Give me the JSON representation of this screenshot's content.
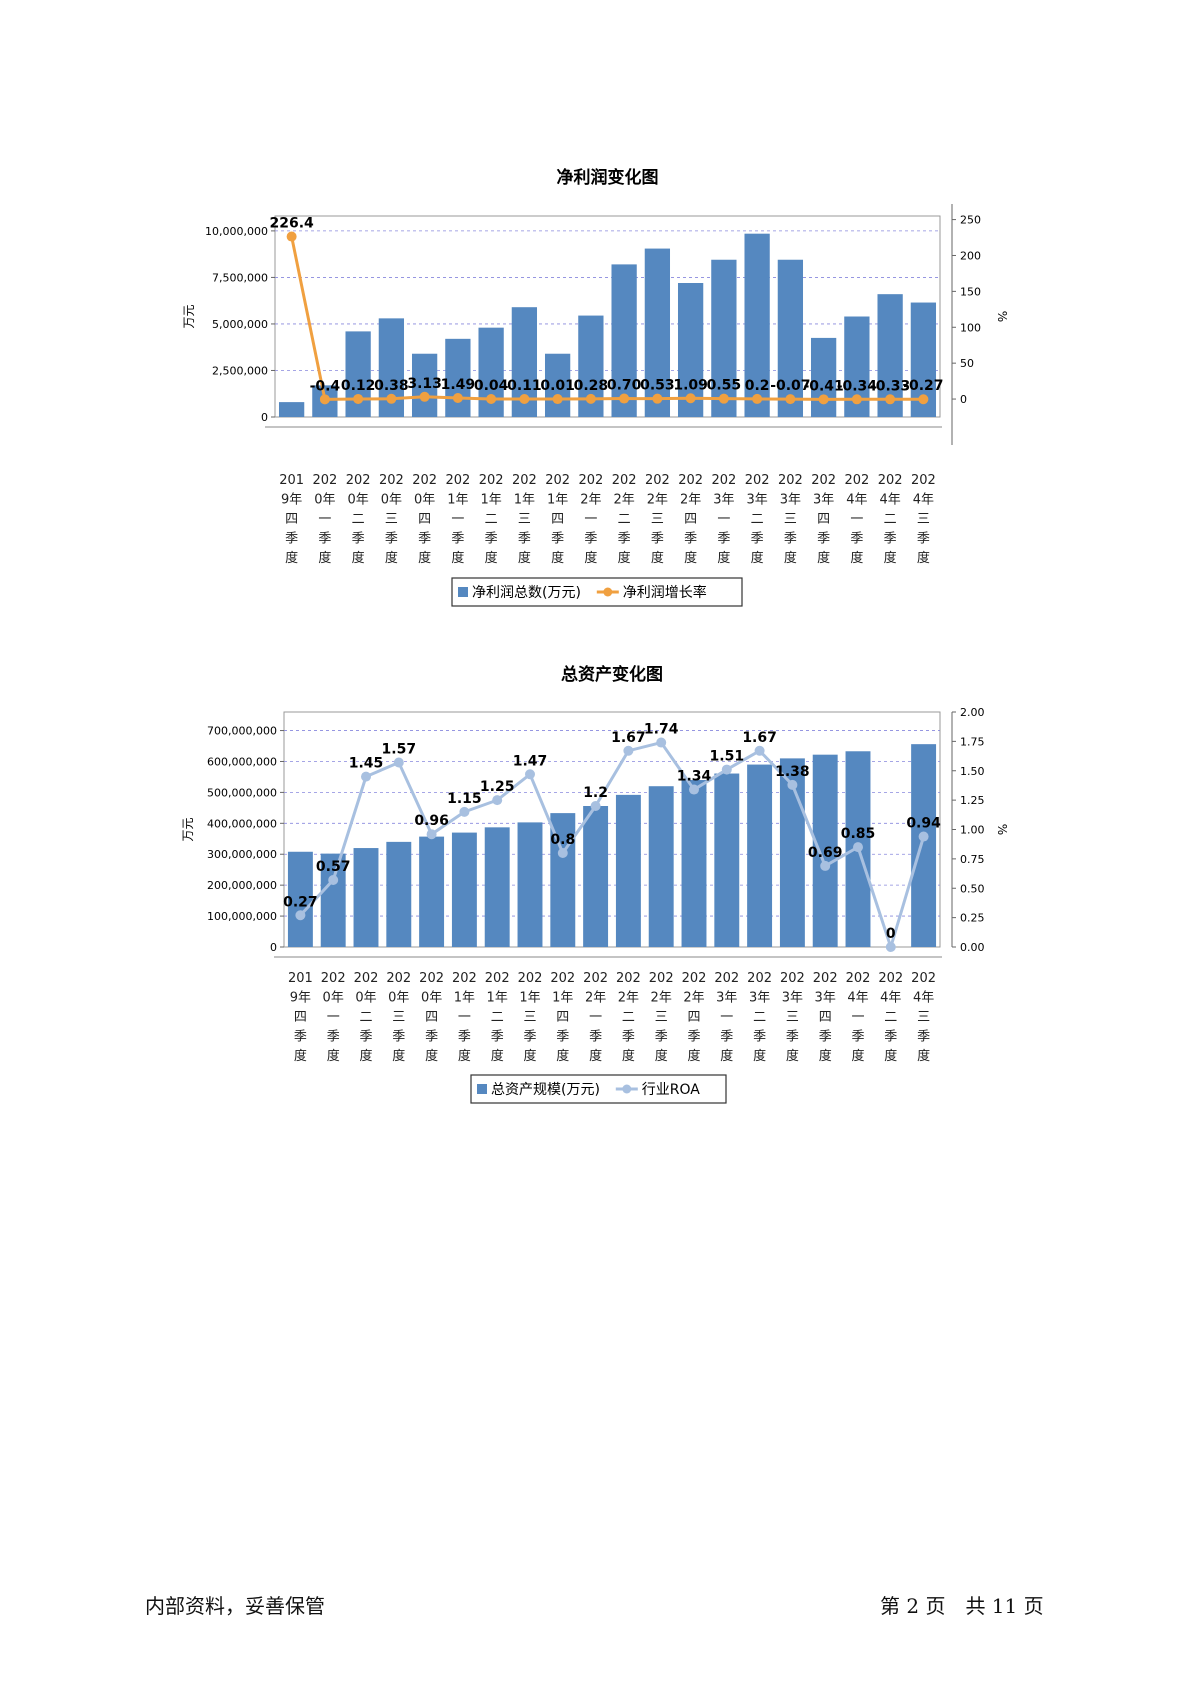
{
  "chart_data": [
    {
      "type": "bar",
      "title": "净利润变化图",
      "ylabel": "万元",
      "y2label": "%",
      "ylim": [
        0,
        10800000
      ],
      "y2lim": [
        -25,
        255
      ],
      "yticks": [
        "0",
        "2,500,000",
        "5,000,000",
        "7,500,000",
        "10,000,000"
      ],
      "y2ticks": [
        "0",
        "50",
        "100",
        "150",
        "200",
        "250"
      ],
      "grid": true,
      "legend_position": "bottom-center",
      "categories": [
        [
          "201",
          "9年",
          "四",
          "季",
          "度"
        ],
        [
          "202",
          "0年",
          "一",
          "季",
          "度"
        ],
        [
          "202",
          "0年",
          "二",
          "季",
          "度"
        ],
        [
          "202",
          "0年",
          "三",
          "季",
          "度"
        ],
        [
          "202",
          "0年",
          "四",
          "季",
          "度"
        ],
        [
          "202",
          "1年",
          "一",
          "季",
          "度"
        ],
        [
          "202",
          "1年",
          "二",
          "季",
          "度"
        ],
        [
          "202",
          "1年",
          "三",
          "季",
          "度"
        ],
        [
          "202",
          "1年",
          "四",
          "季",
          "度"
        ],
        [
          "202",
          "2年",
          "一",
          "季",
          "度"
        ],
        [
          "202",
          "2年",
          "二",
          "季",
          "度"
        ],
        [
          "202",
          "2年",
          "三",
          "季",
          "度"
        ],
        [
          "202",
          "2年",
          "四",
          "季",
          "度"
        ],
        [
          "202",
          "3年",
          "一",
          "季",
          "度"
        ],
        [
          "202",
          "3年",
          "二",
          "季",
          "度"
        ],
        [
          "202",
          "3年",
          "三",
          "季",
          "度"
        ],
        [
          "202",
          "3年",
          "四",
          "季",
          "度"
        ],
        [
          "202",
          "4年",
          "一",
          "季",
          "度"
        ],
        [
          "202",
          "4年",
          "二",
          "季",
          "度"
        ],
        [
          "202",
          "4年",
          "三",
          "季",
          "度"
        ]
      ],
      "series": [
        {
          "name": "净利润总数(万元)",
          "type": "bar",
          "axis": "left",
          "color": "#5588c0",
          "values": [
            800000,
            1700000,
            4600000,
            5300000,
            3400000,
            4200000,
            4800000,
            5900000,
            3400000,
            5450000,
            8200000,
            9050000,
            7200000,
            8450000,
            9850000,
            8450000,
            4250000,
            5400000,
            6600000,
            6150000
          ]
        },
        {
          "name": "净利润增长率",
          "type": "line",
          "axis": "right",
          "color": "#f0a040",
          "values": [
            226.4,
            -0.4,
            0.12,
            0.38,
            3.13,
            1.49,
            0.04,
            0.11,
            0.01,
            0.28,
            0.7,
            0.53,
            1.09,
            0.55,
            0.2,
            -0.07,
            -0.41,
            -0.34,
            -0.33,
            -0.27
          ],
          "labels": [
            "226.4",
            "-0.4",
            "0.12",
            "0.38",
            "3.13",
            "1.49",
            "0.04",
            "0.11",
            "0.01",
            "0.28",
            "0.70",
            "0.53",
            "1.09",
            "0.55",
            "0.2",
            "-0.07",
            "-0.41",
            "-0.34",
            "-0.33",
            "-0.27"
          ]
        }
      ]
    },
    {
      "type": "bar",
      "title": "总资产变化图",
      "ylabel": "万元",
      "y2label": "%",
      "ylim": [
        0,
        760000000
      ],
      "y2lim": [
        0,
        2.0
      ],
      "yticks": [
        "0",
        "100,000,000",
        "200,000,000",
        "300,000,000",
        "400,000,000",
        "500,000,000",
        "600,000,000",
        "700,000,000"
      ],
      "y2ticks": [
        "0.00",
        "0.25",
        "0.50",
        "0.75",
        "1.00",
        "1.25",
        "1.50",
        "1.75",
        "2.00"
      ],
      "grid": true,
      "legend_position": "bottom-center",
      "categories": [
        [
          "201",
          "9年",
          "四",
          "季",
          "度"
        ],
        [
          "202",
          "0年",
          "一",
          "季",
          "度"
        ],
        [
          "202",
          "0年",
          "二",
          "季",
          "度"
        ],
        [
          "202",
          "0年",
          "三",
          "季",
          "度"
        ],
        [
          "202",
          "0年",
          "四",
          "季",
          "度"
        ],
        [
          "202",
          "1年",
          "一",
          "季",
          "度"
        ],
        [
          "202",
          "1年",
          "二",
          "季",
          "度"
        ],
        [
          "202",
          "1年",
          "三",
          "季",
          "度"
        ],
        [
          "202",
          "1年",
          "四",
          "季",
          "度"
        ],
        [
          "202",
          "2年",
          "一",
          "季",
          "度"
        ],
        [
          "202",
          "2年",
          "二",
          "季",
          "度"
        ],
        [
          "202",
          "2年",
          "三",
          "季",
          "度"
        ],
        [
          "202",
          "2年",
          "四",
          "季",
          "度"
        ],
        [
          "202",
          "3年",
          "一",
          "季",
          "度"
        ],
        [
          "202",
          "3年",
          "二",
          "季",
          "度"
        ],
        [
          "202",
          "3年",
          "三",
          "季",
          "度"
        ],
        [
          "202",
          "3年",
          "四",
          "季",
          "度"
        ],
        [
          "202",
          "4年",
          "一",
          "季",
          "度"
        ],
        [
          "202",
          "4年",
          "二",
          "季",
          "度"
        ],
        [
          "202",
          "4年",
          "三",
          "季",
          "度"
        ]
      ],
      "series": [
        {
          "name": "总资产规模(万元)",
          "type": "bar",
          "axis": "left",
          "color": "#5588c0",
          "values": [
            308000000,
            302000000,
            320000000,
            340000000,
            357000000,
            370000000,
            387000000,
            403000000,
            433000000,
            456000000,
            492000000,
            520000000,
            540000000,
            561000000,
            590000000,
            610000000,
            622000000,
            633000000,
            null,
            656000000
          ]
        },
        {
          "name": "行业ROA",
          "type": "line",
          "axis": "right",
          "color": "#a8c0e0",
          "values": [
            0.27,
            0.57,
            1.45,
            1.57,
            0.96,
            1.15,
            1.25,
            1.47,
            0.8,
            1.2,
            1.67,
            1.74,
            1.34,
            1.51,
            1.67,
            1.38,
            0.69,
            0.85,
            0,
            0.94
          ],
          "labels": [
            "0.27",
            "0.57",
            "1.45",
            "1.57",
            "0.96",
            "1.15",
            "1.25",
            "1.47",
            "0.8",
            "1.2",
            "1.67",
            "1.74",
            "1.34",
            "1.51",
            "1.67",
            "1.38",
            "0.69",
            "0.85",
            "0",
            "0.94"
          ]
        }
      ]
    }
  ],
  "footer": {
    "left": "内部资料，妥善保管",
    "right": "第 2 页　共 11 页"
  }
}
